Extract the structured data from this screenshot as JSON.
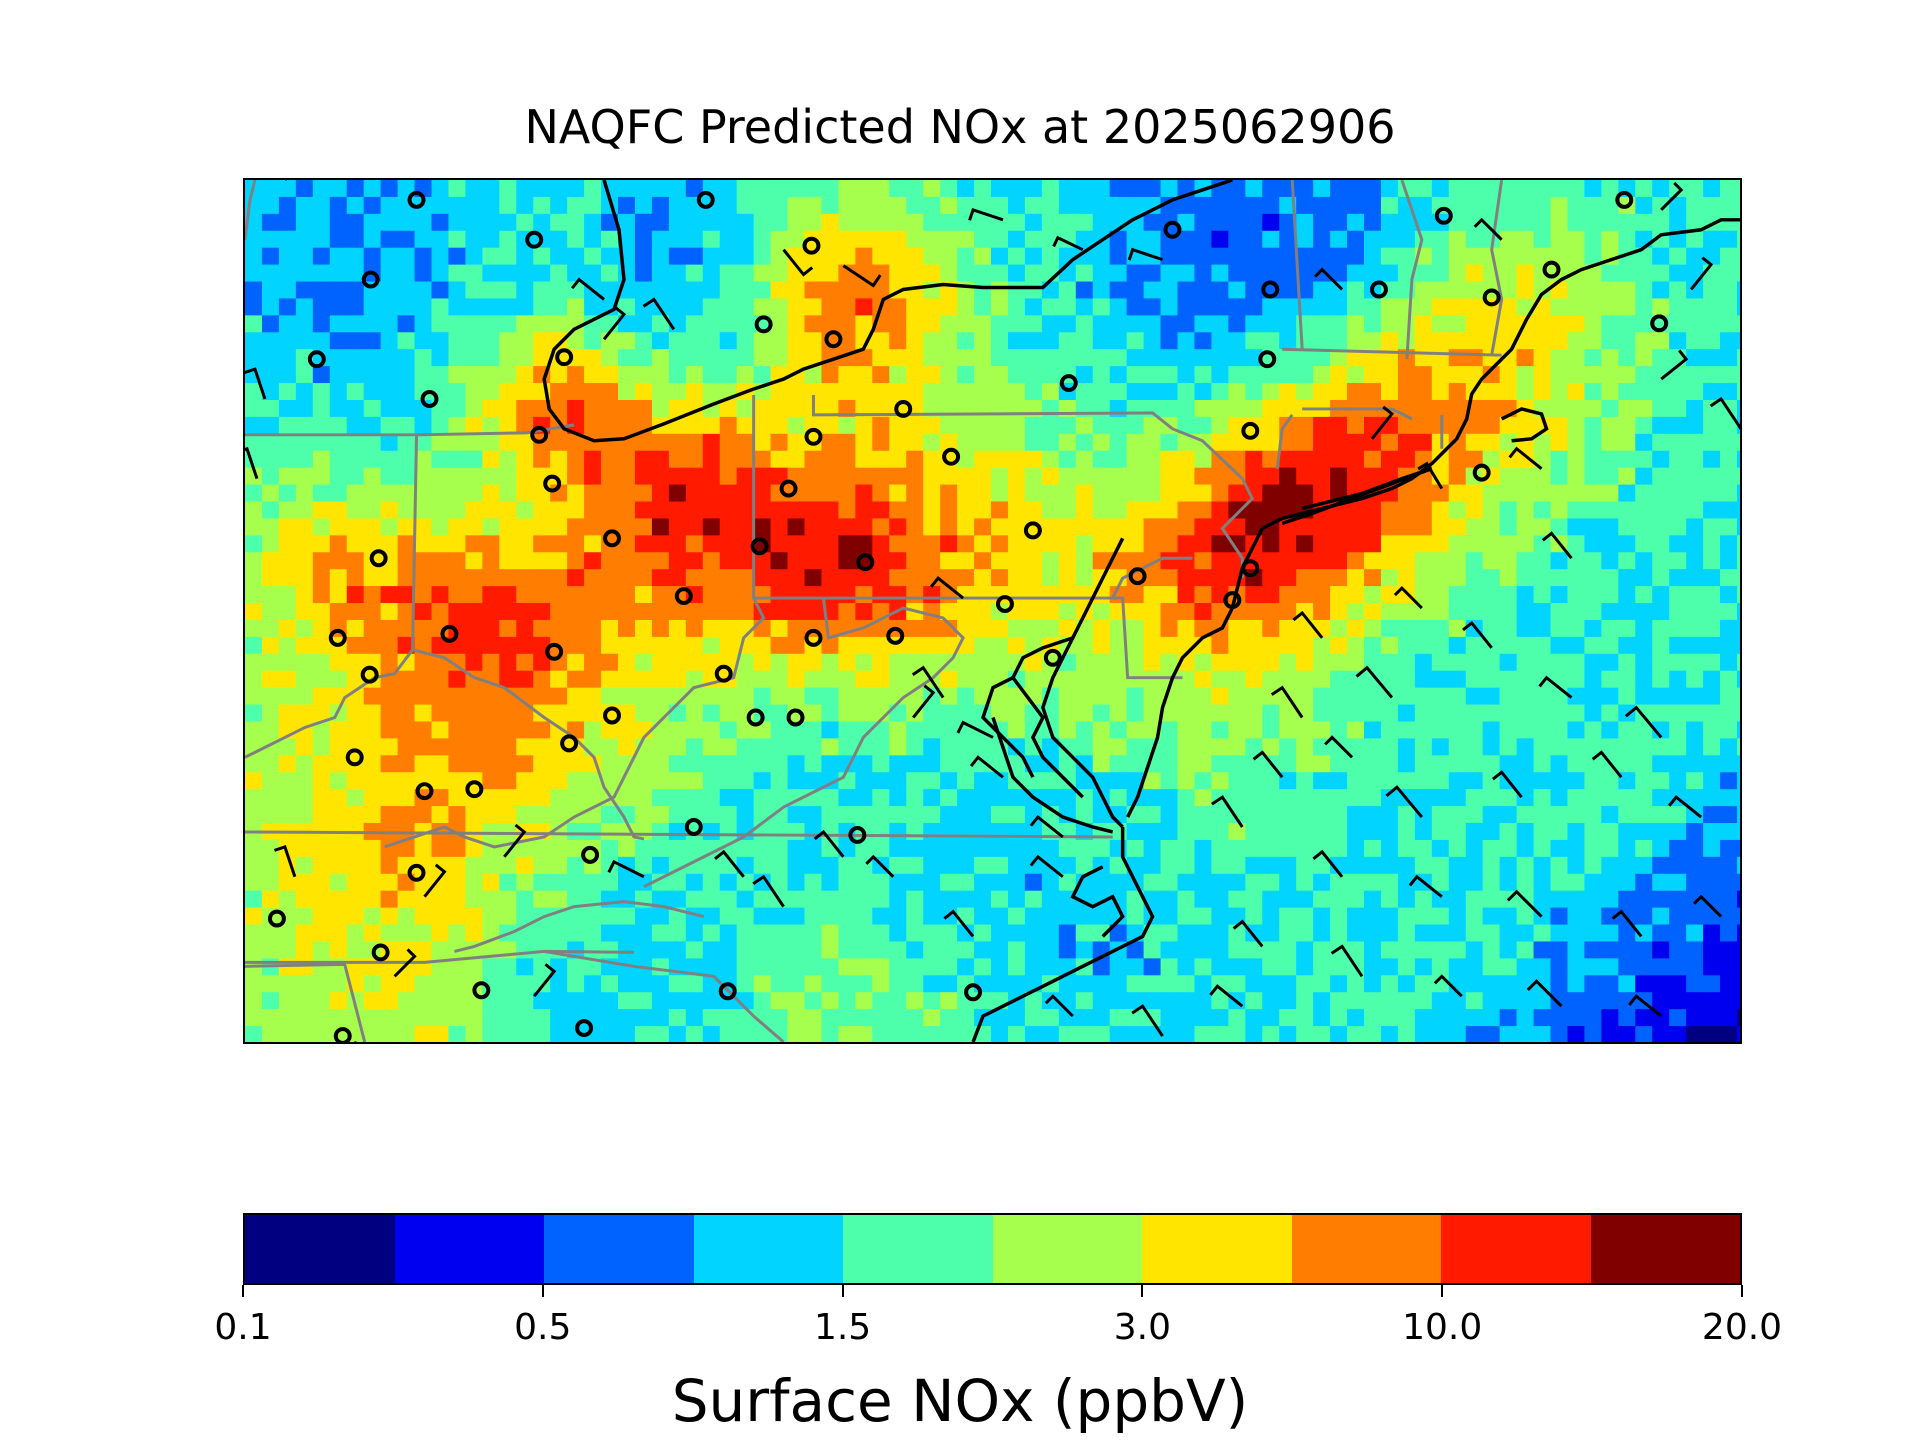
{
  "title": "NAQFC Predicted NOx at 2025062906",
  "colorbar": {
    "label": "Surface NOx (ppbV)",
    "colors": [
      "#000080",
      "#0000f0",
      "#0062ff",
      "#00d4ff",
      "#4dffaa",
      "#a6ff4d",
      "#ffe500",
      "#ff7d00",
      "#ff1a00",
      "#800000"
    ],
    "ticks": [
      {
        "label": "0.1",
        "index": 0
      },
      {
        "label": "0.5",
        "index": 2
      },
      {
        "label": "1.5",
        "index": 4
      },
      {
        "label": "3.0",
        "index": 6
      },
      {
        "label": "10.0",
        "index": 8
      },
      {
        "label": "20.0",
        "index": 10
      }
    ]
  },
  "map": {
    "field": "surface NOx concentration",
    "region": "Mid-Atlantic and Northeastern United States",
    "features": [
      "concentration grid",
      "state boundaries",
      "coastlines",
      "monitor-station-markers",
      "wind-barbs"
    ],
    "colors": {
      "state_border": "#808080",
      "coastline": "#000000",
      "station_marker": "#000000",
      "wind_barb": "#000000"
    }
  }
}
